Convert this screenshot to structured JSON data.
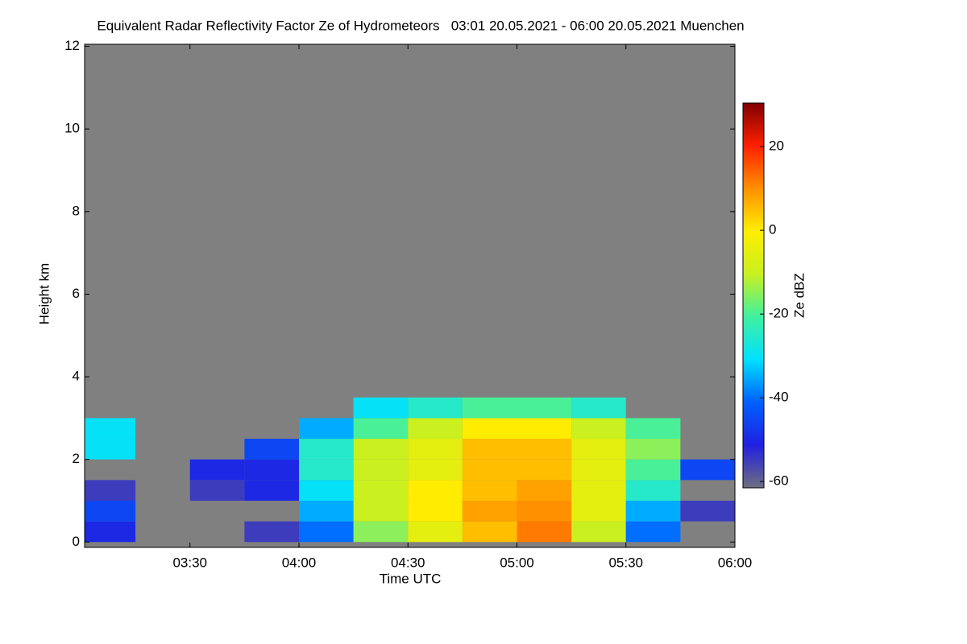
{
  "chart_data": {
    "type": "heatmap",
    "title": "Equivalent Radar Reflectivity Factor Ze of Hydrometeors   03:01 20.05.2021 - 06:00 20.05.2021 Muenchen",
    "xlabel": "Time UTC",
    "ylabel": "Height km",
    "clabel": "Ze dBZ",
    "xlim": [
      181,
      360
    ],
    "xticks": [
      {
        "value": 210,
        "label": "03:30"
      },
      {
        "value": 240,
        "label": "04:00"
      },
      {
        "value": 270,
        "label": "04:30"
      },
      {
        "value": 300,
        "label": "05:00"
      },
      {
        "value": 330,
        "label": "05:30"
      },
      {
        "value": 360,
        "label": "06:00"
      }
    ],
    "ylim": [
      -0.13,
      12.05
    ],
    "yticks": [
      0,
      2,
      4,
      6,
      8,
      10,
      12
    ],
    "clim": [
      -61.5,
      30.4
    ],
    "cticks": [
      -60,
      -40,
      -20,
      0,
      20
    ],
    "colormap": [
      "#6e6e80",
      "#2020e0",
      "#0060ff",
      "#00e0ff",
      "#40f0a0",
      "#c8f020",
      "#ffee00",
      "#ff9000",
      "#ff2000",
      "#800000"
    ],
    "background": "#808080",
    "x_edges": [
      181,
      195,
      210,
      225,
      240,
      255,
      270,
      285,
      300,
      315,
      330,
      345,
      360
    ],
    "y_edges": [
      0,
      0.5,
      1,
      1.5,
      2,
      2.5,
      3,
      3.5,
      4
    ],
    "z": [
      [
        -50,
        null,
        null,
        -55,
        -40,
        -15,
        -5,
        5,
        12,
        -10,
        -40,
        null
      ],
      [
        -45,
        null,
        null,
        null,
        -35,
        -10,
        0,
        8,
        10,
        -5,
        -35,
        -55
      ],
      [
        -55,
        null,
        -55,
        -50,
        -30,
        -10,
        0,
        5,
        8,
        -5,
        -25,
        null
      ],
      [
        null,
        null,
        -50,
        -50,
        -25,
        -10,
        -5,
        5,
        5,
        -5,
        -20,
        -45
      ],
      [
        -30,
        null,
        null,
        -45,
        -25,
        -10,
        -5,
        5,
        5,
        -5,
        -15,
        null
      ],
      [
        -30,
        null,
        null,
        null,
        -35,
        -20,
        -10,
        0,
        0,
        -10,
        -20,
        null
      ],
      [
        null,
        null,
        null,
        null,
        null,
        -30,
        -25,
        -20,
        -20,
        -25,
        null,
        null
      ],
      [
        null,
        null,
        null,
        null,
        null,
        null,
        null,
        null,
        null,
        null,
        null,
        null
      ]
    ]
  }
}
